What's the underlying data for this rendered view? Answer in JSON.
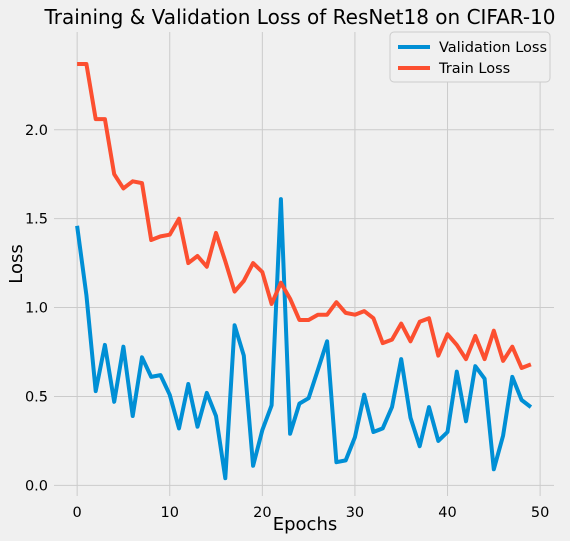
{
  "chart_data": {
    "type": "line",
    "title": "Training & Validation Loss of ResNet18 on CIFAR-10",
    "xlabel": "Epochs",
    "ylabel": "Loss",
    "xlim": [
      -2.5,
      51.5
    ],
    "ylim": [
      -0.06,
      2.55
    ],
    "xticks": [
      0,
      10,
      20,
      30,
      40,
      50
    ],
    "yticks": [
      0.0,
      0.5,
      1.0,
      1.5,
      2.0
    ],
    "xtick_labels": [
      "0",
      "10",
      "20",
      "30",
      "40",
      "50"
    ],
    "ytick_labels": [
      "0.0",
      "0.5",
      "1.0",
      "1.5",
      "2.0"
    ],
    "grid": true,
    "legend_position": "top-right",
    "x": [
      0,
      1,
      2,
      3,
      4,
      5,
      6,
      7,
      8,
      9,
      10,
      11,
      12,
      13,
      14,
      15,
      16,
      17,
      18,
      19,
      20,
      21,
      22,
      23,
      24,
      25,
      26,
      27,
      28,
      29,
      30,
      31,
      32,
      33,
      34,
      35,
      36,
      37,
      38,
      39,
      40,
      41,
      42,
      43,
      44,
      45,
      46,
      47,
      48,
      49
    ],
    "series": [
      {
        "name": "Validation Loss",
        "color": "#008fd5",
        "values": [
          1.46,
          1.07,
          0.53,
          0.79,
          0.47,
          0.78,
          0.39,
          0.72,
          0.61,
          0.62,
          0.51,
          0.32,
          0.57,
          0.33,
          0.52,
          0.39,
          0.04,
          0.9,
          0.73,
          0.11,
          0.31,
          0.45,
          1.61,
          0.29,
          0.46,
          0.49,
          0.65,
          0.81,
          0.13,
          0.14,
          0.27,
          0.51,
          0.3,
          0.32,
          0.44,
          0.71,
          0.38,
          0.22,
          0.44,
          0.25,
          0.3,
          0.64,
          0.36,
          0.67,
          0.6,
          0.09,
          0.28,
          0.61,
          0.48,
          0.44
        ]
      },
      {
        "name": "Train Loss",
        "color": "#fc4f30",
        "values": [
          2.37,
          2.37,
          2.06,
          2.06,
          1.75,
          1.67,
          1.71,
          1.7,
          1.38,
          1.4,
          1.41,
          1.5,
          1.25,
          1.29,
          1.23,
          1.42,
          1.26,
          1.09,
          1.15,
          1.25,
          1.2,
          1.02,
          1.14,
          1.05,
          0.93,
          0.93,
          0.96,
          0.96,
          1.03,
          0.97,
          0.96,
          0.98,
          0.94,
          0.8,
          0.82,
          0.91,
          0.81,
          0.92,
          0.94,
          0.73,
          0.85,
          0.79,
          0.71,
          0.84,
          0.71,
          0.87,
          0.7,
          0.78,
          0.66,
          0.68
        ]
      }
    ]
  }
}
